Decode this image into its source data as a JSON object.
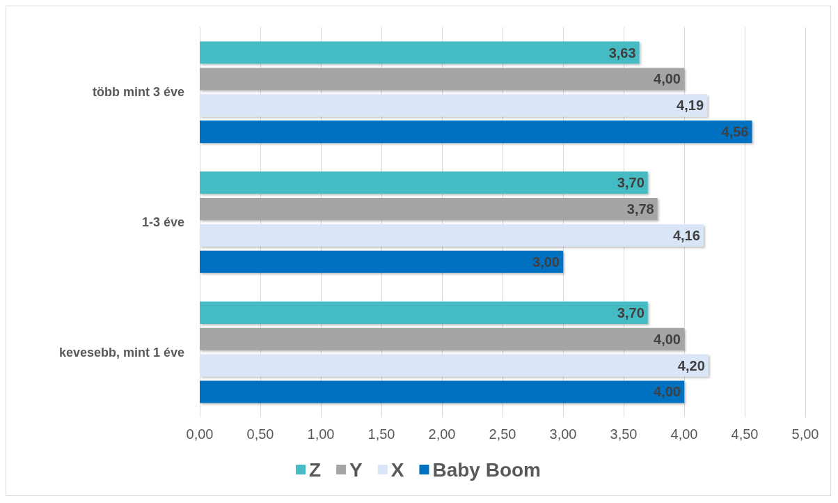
{
  "chart_data": {
    "type": "bar",
    "orientation": "horizontal",
    "categories": [
      "több mint 3 éve",
      "1-3 éve",
      "kevesebb, mint 1 éve"
    ],
    "series": [
      {
        "name": "Z",
        "color": "#45bbc3",
        "values": [
          3.63,
          3.7,
          3.7
        ],
        "value_labels": [
          "3,63",
          "3,70",
          "3,70"
        ]
      },
      {
        "name": "Y",
        "color": "#a5a5a5",
        "values": [
          4.0,
          3.78,
          4.0
        ],
        "value_labels": [
          "4,00",
          "3,78",
          "4,00"
        ]
      },
      {
        "name": "X",
        "color": "#dae6f8",
        "values": [
          4.19,
          4.16,
          4.2
        ],
        "value_labels": [
          "4,19",
          "4,16",
          "4,20"
        ]
      },
      {
        "name": "Baby Boom",
        "color": "#0070c0",
        "values": [
          4.56,
          3.0,
          4.0
        ],
        "value_labels": [
          "4,56",
          "3,00",
          "4,00"
        ]
      }
    ],
    "xlim": [
      0,
      5
    ],
    "xticks": [
      {
        "value": 0,
        "label": "0,00"
      },
      {
        "value": 0.5,
        "label": "0,50"
      },
      {
        "value": 1,
        "label": "1,00"
      },
      {
        "value": 1.5,
        "label": "1,50"
      },
      {
        "value": 2,
        "label": "2,00"
      },
      {
        "value": 2.5,
        "label": "2,50"
      },
      {
        "value": 3,
        "label": "3,00"
      },
      {
        "value": 3.5,
        "label": "3,50"
      },
      {
        "value": 4,
        "label": "4,00"
      },
      {
        "value": 4.5,
        "label": "4,50"
      },
      {
        "value": 5,
        "label": "5,00"
      }
    ],
    "grid": "x",
    "legend": "bottom"
  }
}
